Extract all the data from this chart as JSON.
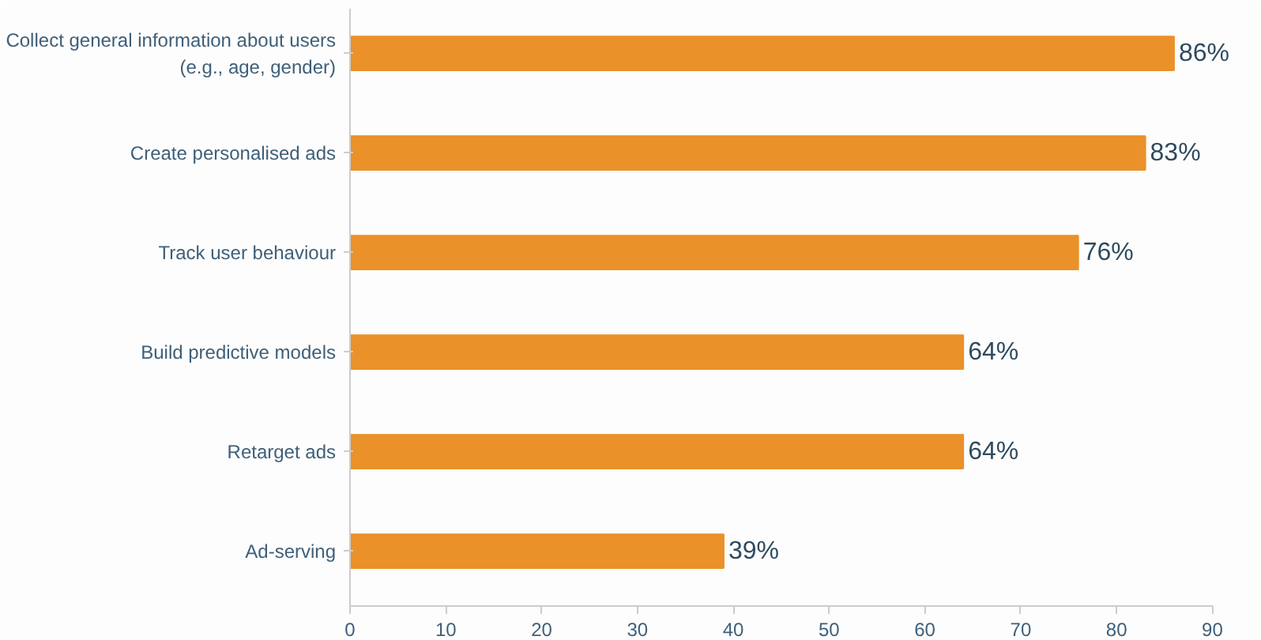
{
  "chart_data": {
    "type": "bar",
    "orientation": "horizontal",
    "categories": [
      "Collect general information about users\n(e.g., age, gender)",
      "Create personalised ads",
      "Track user behaviour",
      "Build predictive models",
      "Retarget ads",
      "Ad-serving"
    ],
    "values": [
      86,
      83,
      76,
      64,
      64,
      39
    ],
    "value_labels": [
      "86%",
      "83%",
      "76%",
      "64%",
      "64%",
      "39%"
    ],
    "color": "#ea9129",
    "xlim": [
      0,
      90
    ],
    "xticks": [
      0,
      10,
      20,
      30,
      40,
      50,
      60,
      70,
      80,
      90
    ],
    "grid": false
  }
}
